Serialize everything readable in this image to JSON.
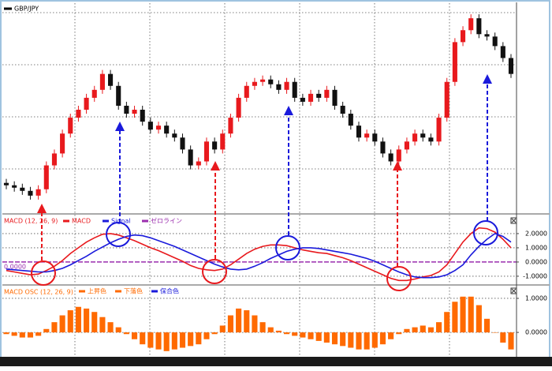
{
  "chart_data": [
    {
      "type": "candlestick",
      "title": "GBP/JPY",
      "open": [
        38,
        35,
        32,
        28,
        22,
        30,
        60,
        75,
        100,
        120,
        130,
        145,
        155,
        175,
        160,
        135,
        125,
        130,
        115,
        105,
        110,
        100,
        95,
        80,
        60,
        65,
        90,
        80,
        100,
        120,
        145,
        160,
        165,
        168,
        162,
        155,
        165,
        145,
        140,
        150,
        145,
        155,
        135,
        125,
        110,
        95,
        100,
        90,
        75,
        65,
        80,
        90,
        100,
        95,
        90,
        120,
        165,
        215,
        230,
        245,
        225,
        222,
        210,
        195
      ],
      "high": [
        43,
        40,
        37,
        33,
        35,
        65,
        80,
        105,
        125,
        135,
        150,
        160,
        180,
        180,
        165,
        140,
        135,
        135,
        120,
        115,
        115,
        105,
        100,
        85,
        70,
        95,
        95,
        105,
        125,
        150,
        165,
        170,
        173,
        173,
        167,
        170,
        170,
        150,
        155,
        155,
        160,
        160,
        140,
        130,
        115,
        105,
        105,
        95,
        80,
        85,
        95,
        105,
        105,
        100,
        125,
        170,
        220,
        235,
        250,
        250,
        230,
        227,
        215,
        200
      ],
      "low": [
        30,
        27,
        23,
        17,
        17,
        25,
        55,
        70,
        95,
        115,
        125,
        140,
        150,
        155,
        130,
        120,
        120,
        110,
        100,
        100,
        95,
        90,
        75,
        55,
        55,
        60,
        75,
        75,
        95,
        115,
        140,
        155,
        160,
        157,
        150,
        150,
        140,
        135,
        135,
        140,
        140,
        130,
        120,
        105,
        90,
        90,
        85,
        70,
        60,
        60,
        75,
        85,
        90,
        85,
        85,
        115,
        160,
        210,
        225,
        220,
        217,
        205,
        190,
        170
      ],
      "close": [
        35,
        32,
        28,
        22,
        30,
        60,
        75,
        100,
        120,
        130,
        145,
        155,
        175,
        160,
        135,
        125,
        130,
        115,
        105,
        110,
        100,
        95,
        80,
        60,
        65,
        90,
        80,
        100,
        120,
        145,
        160,
        165,
        168,
        162,
        155,
        165,
        145,
        140,
        150,
        145,
        155,
        135,
        125,
        110,
        95,
        100,
        90,
        75,
        65,
        80,
        90,
        100,
        95,
        90,
        120,
        165,
        215,
        230,
        245,
        225,
        222,
        210,
        195,
        175
      ],
      "up_color": "#e8191d",
      "down_color": "#111111",
      "ylim": [
        0,
        262
      ],
      "grid": true
    },
    {
      "type": "line",
      "title": "MACD (12, 26, 9)",
      "title_color": "#e8191d",
      "series": [
        {
          "name": "MACD",
          "color": "#e8191d",
          "values": [
            -0.6,
            -0.7,
            -0.8,
            -0.9,
            -0.85,
            -0.6,
            -0.3,
            0.1,
            0.6,
            1.0,
            1.4,
            1.7,
            1.95,
            2.0,
            1.9,
            1.7,
            1.5,
            1.25,
            1.0,
            0.8,
            0.55,
            0.3,
            0.05,
            -0.25,
            -0.45,
            -0.55,
            -0.6,
            -0.5,
            -0.2,
            0.2,
            0.6,
            0.9,
            1.1,
            1.2,
            1.2,
            1.15,
            1.0,
            0.85,
            0.75,
            0.65,
            0.6,
            0.45,
            0.3,
            0.1,
            -0.15,
            -0.4,
            -0.65,
            -0.9,
            -1.15,
            -1.3,
            -1.3,
            -1.2,
            -1.05,
            -0.95,
            -0.7,
            -0.2,
            0.6,
            1.4,
            2.0,
            2.4,
            2.35,
            2.1,
            1.6,
            1.0
          ]
        },
        {
          "name": "Signal",
          "color": "#1a1adb",
          "values": [
            -0.5,
            -0.55,
            -0.6,
            -0.65,
            -0.7,
            -0.7,
            -0.6,
            -0.45,
            -0.2,
            0.1,
            0.4,
            0.75,
            1.05,
            1.35,
            1.6,
            1.8,
            1.9,
            1.85,
            1.7,
            1.5,
            1.3,
            1.1,
            0.85,
            0.6,
            0.35,
            0.1,
            -0.15,
            -0.35,
            -0.5,
            -0.55,
            -0.5,
            -0.3,
            -0.05,
            0.25,
            0.5,
            0.75,
            0.9,
            1.0,
            1.0,
            0.95,
            0.85,
            0.75,
            0.65,
            0.55,
            0.4,
            0.25,
            0.05,
            -0.2,
            -0.45,
            -0.7,
            -0.9,
            -1.05,
            -1.1,
            -1.1,
            -1.05,
            -0.9,
            -0.6,
            -0.2,
            0.5,
            1.1,
            1.6,
            2.0,
            1.8,
            1.4
          ]
        }
      ],
      "zero_line": {
        "name": "ゼロライン",
        "color": "#9b2fae"
      },
      "zero_label": "0.0000",
      "ylim": [
        -1.56,
        3.33
      ],
      "yticks": [
        {
          "value": -1,
          "label": "-1.0000"
        },
        {
          "value": 0,
          "label": "0.0000"
        },
        {
          "value": 1,
          "label": "1.0000"
        },
        {
          "value": 2,
          "label": "2.0000"
        }
      ],
      "grid": true
    },
    {
      "type": "bar",
      "title": "MACD OSC (12, 26, 9)",
      "title_color": "#ff6a00",
      "values": [
        -0.05,
        -0.1,
        -0.15,
        -0.15,
        -0.1,
        0.1,
        0.3,
        0.5,
        0.65,
        0.75,
        0.7,
        0.6,
        0.45,
        0.3,
        0.15,
        -0.05,
        -0.2,
        -0.35,
        -0.45,
        -0.5,
        -0.55,
        -0.5,
        -0.45,
        -0.4,
        -0.35,
        -0.2,
        -0.05,
        0.2,
        0.5,
        0.7,
        0.65,
        0.5,
        0.3,
        0.15,
        0.05,
        -0.05,
        -0.1,
        -0.15,
        -0.2,
        -0.25,
        -0.3,
        -0.35,
        -0.4,
        -0.45,
        -0.5,
        -0.5,
        -0.45,
        -0.35,
        -0.2,
        -0.05,
        0.1,
        0.15,
        0.2,
        0.15,
        0.3,
        0.6,
        0.9,
        1.05,
        1.05,
        0.8,
        0.4,
        0.0,
        -0.3,
        -0.5
      ],
      "color": "#ff6a00",
      "legend": [
        {
          "name": "上昇色",
          "color": "#ff6a00"
        },
        {
          "name": "下落色",
          "color": "#ff6a00"
        },
        {
          "name": "保合色",
          "color": "#1a1adb"
        }
      ],
      "ylim": [
        -0.67,
        1.37
      ],
      "yticks": [
        {
          "value": 0,
          "label": "0.0000"
        },
        {
          "value": 1,
          "label": "1.0000"
        }
      ],
      "grid": true
    }
  ]
}
